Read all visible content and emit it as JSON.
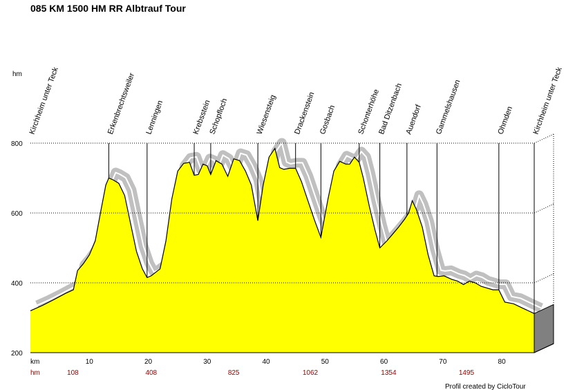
{
  "chart_data": {
    "type": "area",
    "title": "085 KM 1500  HM RR Albtrauf Tour",
    "ylabel": "hm",
    "xlabel": "km",
    "xlim": [
      0,
      85.5
    ],
    "ylim": [
      200,
      800
    ],
    "x_ticks": [
      10,
      20,
      30,
      40,
      50,
      60,
      70,
      80
    ],
    "y_ticks": [
      200,
      400,
      600,
      800
    ],
    "hm_row_label": "hm",
    "hm_row": [
      {
        "km": 7.2,
        "value": "108"
      },
      {
        "km": 20.5,
        "value": "408"
      },
      {
        "km": 34.5,
        "value": "825"
      },
      {
        "km": 47.5,
        "value": "1062"
      },
      {
        "km": 60.8,
        "value": "1354"
      },
      {
        "km": 74.0,
        "value": "1495"
      }
    ],
    "places": [
      {
        "name": "Kirchheim unter Teck",
        "km": 0
      },
      {
        "name": "Erkenbrechtsweiler",
        "km": 13.3
      },
      {
        "name": "Lenningen",
        "km": 19.8
      },
      {
        "name": "Krebsstein",
        "km": 27.8
      },
      {
        "name": "Schopfloch",
        "km": 30.6
      },
      {
        "name": "Wiesensteig",
        "km": 38.6
      },
      {
        "name": "Drackenstein",
        "km": 45.0
      },
      {
        "name": "Gosbach",
        "km": 49.3
      },
      {
        "name": "Schonterhöhe",
        "km": 55.8
      },
      {
        "name": "Bad Ditzenbach",
        "km": 59.3
      },
      {
        "name": "Auendorf",
        "km": 63.9
      },
      {
        "name": "Gammelshausen",
        "km": 69.0
      },
      {
        "name": "Ohmden",
        "km": 79.5
      },
      {
        "name": "Kirchheim unter Teck",
        "km": 85.5
      }
    ],
    "series": [
      {
        "x": [
          0,
          2,
          4,
          6,
          7.3,
          8,
          9,
          10,
          11,
          12,
          12.8,
          13.3,
          14,
          15,
          16,
          17,
          18,
          19,
          19.8,
          20.5,
          22,
          23,
          24,
          25,
          26,
          27,
          27.8,
          28.5,
          29.3,
          30,
          30.6,
          31.5,
          32.5,
          33.5,
          34.5,
          35.5,
          36.5,
          37.5,
          38.6,
          39.5,
          40.5,
          41.5,
          42.3,
          43,
          44,
          45,
          46,
          47,
          48.2,
          49.3,
          50.5,
          51.5,
          52.5,
          53.5,
          54.2,
          55,
          55.8,
          56.5,
          57.5,
          58.5,
          59.3,
          60.5,
          61.5,
          62.5,
          63.5,
          64.2,
          64.8,
          65.5,
          66.5,
          67.5,
          68.5,
          69.2,
          70.2,
          71.5,
          72.5,
          73.5,
          74.5,
          75.5,
          76.5,
          77.5,
          78.5,
          79.5,
          80.5,
          82,
          83.5,
          85.5
        ],
        "y": [
          320,
          335,
          352,
          370,
          380,
          435,
          455,
          480,
          520,
          610,
          680,
          700,
          695,
          685,
          650,
          570,
          490,
          440,
          415,
          420,
          440,
          520,
          640,
          720,
          742,
          745,
          708,
          710,
          740,
          735,
          710,
          750,
          740,
          705,
          755,
          750,
          720,
          680,
          578,
          680,
          760,
          785,
          730,
          725,
          728,
          728,
          690,
          640,
          580,
          530,
          640,
          720,
          748,
          740,
          740,
          760,
          745,
          700,
          620,
          550,
          500,
          520,
          540,
          560,
          582,
          600,
          635,
          610,
          560,
          480,
          420,
          418,
          420,
          410,
          405,
          395,
          405,
          400,
          390,
          385,
          380,
          380,
          345,
          340,
          328,
          312
        ]
      }
    ],
    "credit": "Profil created by CicloTour",
    "colors": {
      "fill": "#ffff00",
      "shadow": "#c0c0c0",
      "side": "#808080",
      "line": "#000000"
    }
  }
}
